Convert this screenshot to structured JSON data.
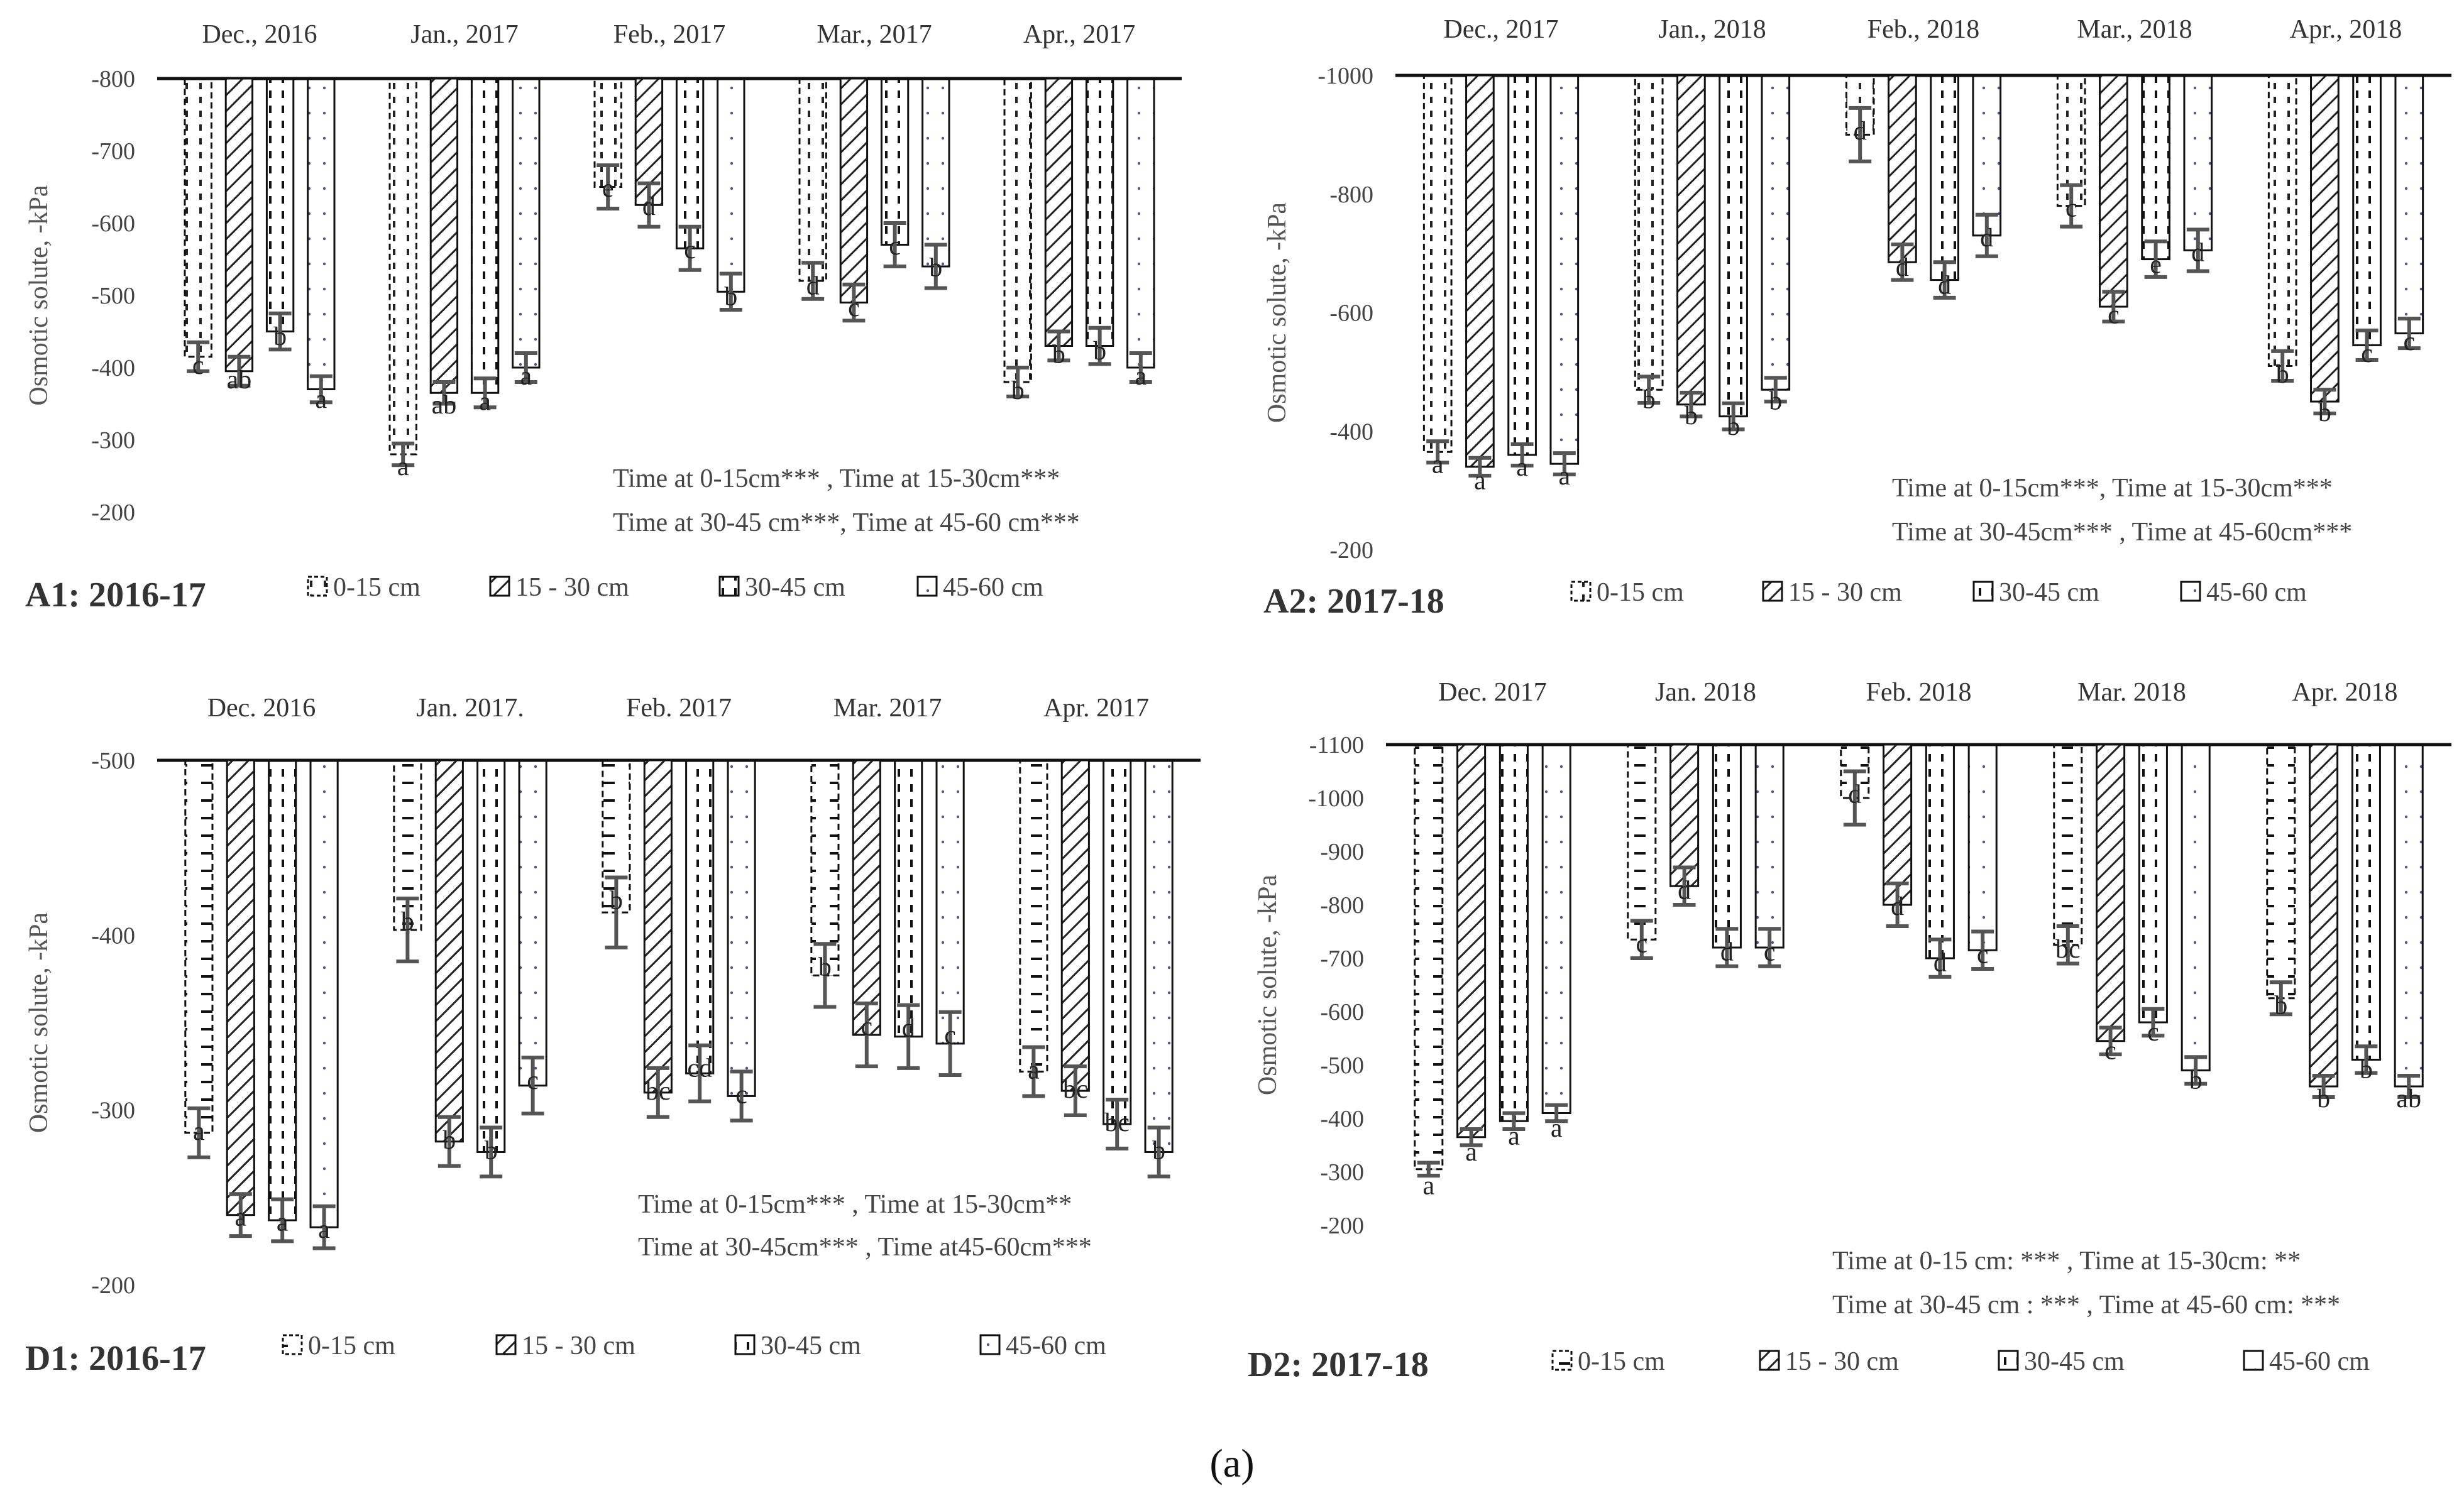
{
  "figure_caption": "(a)",
  "legend": [
    "0-15 cm",
    "15 - 30 cm",
    "30-45 cm",
    "45-60 cm"
  ],
  "chart_data": [
    {
      "id": "A1",
      "type": "bar",
      "title": "A1: 2016-17",
      "ylabel": "Osmotic solute, -kPa",
      "ylim": [
        -800,
        -200
      ],
      "yticks": [
        -200,
        -300,
        -400,
        -500,
        -600,
        -700,
        -800
      ],
      "categories": [
        "Dec., 2016",
        "Jan., 2017",
        "Feb., 2017",
        "Mar., 2017",
        "Apr., 2017"
      ],
      "series": [
        {
          "name": "0-15 cm",
          "values": [
            -415,
            -280,
            -650,
            -520,
            -380
          ],
          "errors": [
            20,
            15,
            30,
            25,
            20
          ],
          "letters": [
            "c",
            "a",
            "e",
            "d",
            "b"
          ]
        },
        {
          "name": "15 - 30 cm",
          "values": [
            -395,
            -365,
            -625,
            -490,
            -430
          ],
          "errors": [
            20,
            15,
            30,
            25,
            20
          ],
          "letters": [
            "ab",
            "ab",
            "d",
            "c",
            "b"
          ]
        },
        {
          "name": "30-45 cm",
          "values": [
            -450,
            -365,
            -565,
            -570,
            -430
          ],
          "errors": [
            25,
            20,
            30,
            30,
            25
          ],
          "letters": [
            "b",
            "a",
            "c",
            "c",
            "b"
          ]
        },
        {
          "name": "45-60 cm",
          "values": [
            -370,
            -400,
            -505,
            -540,
            -400
          ],
          "errors": [
            18,
            20,
            25,
            30,
            20
          ],
          "letters": [
            "a",
            "a",
            "b",
            "b",
            "a"
          ]
        }
      ],
      "notes": [
        "Time at 0-15cm*** , Time at 15-30cm***",
        "Time at 30-45 cm***, Time at 45-60 cm***"
      ]
    },
    {
      "id": "A2",
      "type": "bar",
      "title": "A2: 2017-18",
      "ylabel": "Osmotic solute, -kPa",
      "ylim": [
        -1000,
        -200
      ],
      "yticks": [
        -200,
        -400,
        -600,
        -800,
        -1000
      ],
      "categories": [
        "Dec., 2017",
        "Jan., 2018",
        "Feb., 2018",
        "Mar., 2018",
        "Apr., 2018"
      ],
      "series": [
        {
          "name": "0-15 cm",
          "values": [
            -365,
            -470,
            -900,
            -780,
            -510
          ],
          "errors": [
            18,
            22,
            45,
            35,
            25
          ],
          "letters": [
            "a",
            "b",
            "d",
            "c",
            "b"
          ]
        },
        {
          "name": "15 - 30 cm",
          "values": [
            -340,
            -445,
            -685,
            -610,
            -450
          ],
          "errors": [
            15,
            20,
            30,
            25,
            20
          ],
          "letters": [
            "a",
            "b",
            "d",
            "c",
            "b"
          ]
        },
        {
          "name": "30-45 cm",
          "values": [
            -360,
            -425,
            -655,
            -690,
            -545
          ],
          "errors": [
            18,
            22,
            30,
            30,
            25
          ],
          "letters": [
            "a",
            "b",
            "d",
            "e",
            "c"
          ]
        },
        {
          "name": "45-60 cm",
          "values": [
            -345,
            -470,
            -730,
            -705,
            -565
          ],
          "errors": [
            18,
            20,
            35,
            35,
            25
          ],
          "letters": [
            "a",
            "b",
            "d",
            "d",
            "c"
          ]
        }
      ],
      "notes": [
        "Time at 0-15cm***, Time at 15-30cm***",
        "Time at 30-45cm*** , Time at 45-60cm***"
      ]
    },
    {
      "id": "D1",
      "type": "bar",
      "title": "D1: 2016-17",
      "ylabel": "Osmotic solute, -kPa",
      "ylim": [
        -500,
        -200
      ],
      "yticks": [
        -200,
        -300,
        -400,
        -500
      ],
      "categories": [
        "Dec. 2016",
        "Jan. 2017.",
        "Feb. 2017",
        "Mar. 2017",
        "Apr. 2017"
      ],
      "series": [
        {
          "name": "0-15 cm",
          "values": [
            -287,
            -403,
            -413,
            -377,
            -322
          ],
          "errors": [
            14,
            18,
            20,
            18,
            14
          ],
          "letters": [
            "a",
            "b",
            "b",
            "b",
            "a"
          ]
        },
        {
          "name": "15 - 30 cm",
          "values": [
            -240,
            -282,
            -310,
            -343,
            -311
          ],
          "errors": [
            12,
            14,
            14,
            18,
            14
          ],
          "letters": [
            "a",
            "b",
            "bc",
            "c",
            "bc"
          ]
        },
        {
          "name": "30-45 cm",
          "values": [
            -237,
            -276,
            -321,
            -342,
            -292
          ],
          "errors": [
            12,
            14,
            16,
            18,
            14
          ],
          "letters": [
            "a",
            "b",
            "cd",
            "d",
            "bc"
          ]
        },
        {
          "name": "45-60 cm",
          "values": [
            -233,
            -314,
            -308,
            -338,
            -276
          ],
          "errors": [
            12,
            16,
            14,
            18,
            14
          ],
          "letters": [
            "a",
            "c",
            "c",
            "c",
            "b"
          ]
        }
      ],
      "notes": [
        "Time at 0-15cm*** , Time at 15-30cm**",
        "Time at 30-45cm*** , Time at45-60cm***"
      ]
    },
    {
      "id": "D2",
      "type": "bar",
      "title": "D2: 2017-18",
      "ylabel": "Osmotic solute, -kPa",
      "ylim": [
        -1100,
        -200
      ],
      "yticks": [
        -200,
        -300,
        -400,
        -500,
        -600,
        -700,
        -800,
        -900,
        -1000,
        -1100
      ],
      "categories": [
        "Dec. 2017",
        "Jan. 2018",
        "Feb. 2018",
        "Mar. 2018",
        "Apr. 2018"
      ],
      "series": [
        {
          "name": "0-15 cm",
          "values": [
            -305,
            -735,
            -1000,
            -725,
            -625
          ],
          "errors": [
            12,
            35,
            50,
            35,
            30
          ],
          "letters": [
            "a",
            "c",
            "d",
            "bc",
            "b"
          ]
        },
        {
          "name": "15 - 30 cm",
          "values": [
            -365,
            -835,
            -800,
            -545,
            -460
          ],
          "errors": [
            15,
            35,
            40,
            25,
            20
          ],
          "letters": [
            "a",
            "d",
            "d",
            "c",
            "b"
          ]
        },
        {
          "name": "30-45 cm",
          "values": [
            -395,
            -720,
            -700,
            -580,
            -510
          ],
          "errors": [
            15,
            35,
            35,
            25,
            25
          ],
          "letters": [
            "a",
            "d",
            "d",
            "c",
            "b"
          ]
        },
        {
          "name": "45-60 cm",
          "values": [
            -410,
            -720,
            -715,
            -490,
            -460
          ],
          "errors": [
            15,
            35,
            35,
            25,
            20
          ],
          "letters": [
            "a",
            "c",
            "c",
            "b",
            "ab"
          ]
        }
      ],
      "notes": [
        "Time at 0-15 cm: *** , Time at 15-30cm: **",
        "Time at 30-45 cm : *** , Time at 45-60 cm: ***"
      ]
    }
  ]
}
